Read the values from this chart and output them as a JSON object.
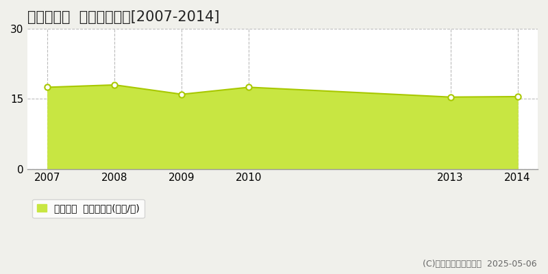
{
  "title": "島田市金谷  土地価格推移[2007-2014]",
  "years": [
    2007,
    2008,
    2009,
    2010,
    2013,
    2014
  ],
  "values": [
    17.5,
    18.0,
    16.0,
    17.5,
    15.4,
    15.5
  ],
  "ylim": [
    0,
    30
  ],
  "yticks": [
    0,
    15,
    30
  ],
  "fill_color": "#c8e642",
  "line_color": "#a8c800",
  "marker_face_color": "#ffffff",
  "marker_edge_color": "#a8c800",
  "grid_color": "#bbbbbb",
  "bg_color": "#f0f0eb",
  "plot_bg_color": "#ffffff",
  "legend_label": "土地価格  平均嵪単価(万円/嵪)",
  "copyright_text": "(C)土地価格ドットコム  2025-05-06",
  "title_fontsize": 15,
  "tick_fontsize": 11,
  "legend_fontsize": 10,
  "copyright_fontsize": 9,
  "marker_size": 6,
  "line_width": 1.5
}
